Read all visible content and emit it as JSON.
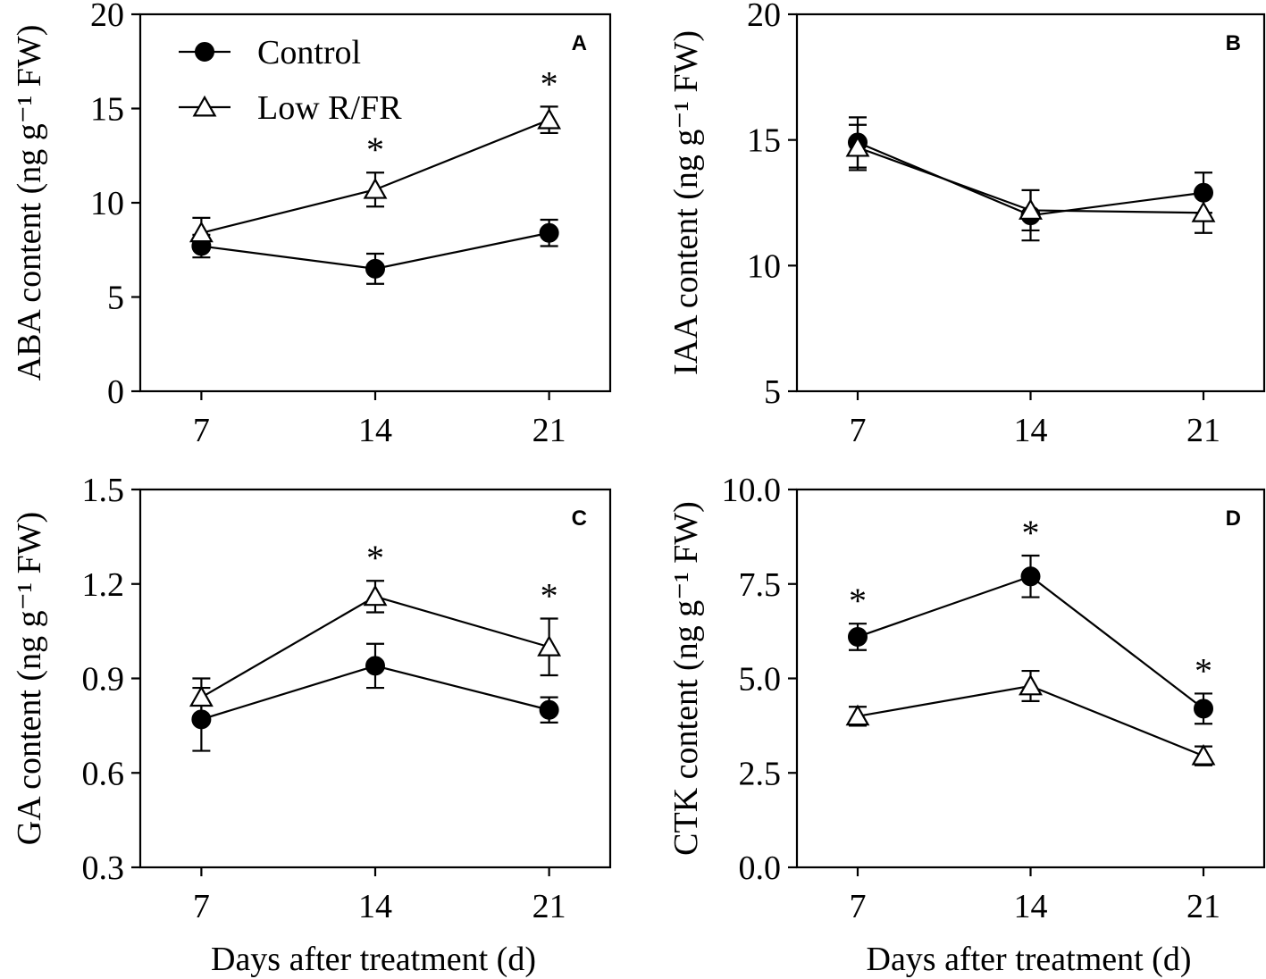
{
  "figure": {
    "legend": [
      {
        "label": "Control",
        "marker": "filled-circle"
      },
      {
        "label": "Low R/FR",
        "marker": "open-triangle"
      }
    ],
    "colors": {
      "line": "#000000",
      "background": "#ffffff"
    }
  },
  "chart_data": [
    {
      "type": "line",
      "panel": "A",
      "xlabel": "",
      "ylabel": "ABA content (ng g⁻¹ FW)",
      "x": [
        7,
        14,
        21
      ],
      "xticks": [
        "7",
        "14",
        "21"
      ],
      "ylim": [
        0,
        20
      ],
      "yticks": [
        "0",
        "5",
        "10",
        "15",
        "20"
      ],
      "series": [
        {
          "name": "Control",
          "values": [
            7.7,
            6.5,
            8.4
          ],
          "errors": [
            0.6,
            0.8,
            0.7
          ]
        },
        {
          "name": "Low R/FR",
          "values": [
            8.4,
            10.7,
            14.4
          ],
          "errors": [
            0.8,
            0.9,
            0.7
          ]
        }
      ],
      "significance": [
        {
          "x": 14,
          "label": "*"
        },
        {
          "x": 21,
          "label": "*"
        }
      ]
    },
    {
      "type": "line",
      "panel": "B",
      "xlabel": "",
      "ylabel": "IAA content (ng g⁻¹ FW)",
      "x": [
        7,
        14,
        21
      ],
      "xticks": [
        "7",
        "14",
        "21"
      ],
      "ylim": [
        5,
        20
      ],
      "yticks": [
        "5",
        "10",
        "15",
        "20"
      ],
      "series": [
        {
          "name": "Control",
          "values": [
            14.9,
            12.0,
            12.9
          ],
          "errors": [
            1.0,
            1.0,
            0.8
          ]
        },
        {
          "name": "Low R/FR",
          "values": [
            14.7,
            12.2,
            12.1
          ],
          "errors": [
            0.9,
            0.8,
            0.8
          ]
        }
      ],
      "significance": []
    },
    {
      "type": "line",
      "panel": "C",
      "xlabel": "Days after treatment (d)",
      "ylabel": "GA content (ng g⁻¹ FW)",
      "x": [
        7,
        14,
        21
      ],
      "xticks": [
        "7",
        "14",
        "21"
      ],
      "ylim": [
        0.3,
        1.5
      ],
      "yticks": [
        "0.3",
        "0.6",
        "0.9",
        "1.2",
        "1.5"
      ],
      "series": [
        {
          "name": "Control",
          "values": [
            0.77,
            0.94,
            0.8
          ],
          "errors": [
            0.1,
            0.07,
            0.04
          ]
        },
        {
          "name": "Low R/FR",
          "values": [
            0.84,
            1.16,
            1.0
          ],
          "errors": [
            0.06,
            0.05,
            0.09
          ]
        }
      ],
      "significance": [
        {
          "x": 14,
          "label": "*"
        },
        {
          "x": 21,
          "label": "*"
        }
      ]
    },
    {
      "type": "line",
      "panel": "D",
      "xlabel": "Days after treatment (d)",
      "ylabel": "CTK content (ng g⁻¹ FW)",
      "x": [
        7,
        14,
        21
      ],
      "xticks": [
        "7",
        "14",
        "21"
      ],
      "ylim": [
        0,
        10
      ],
      "yticks": [
        "0.0",
        "2.5",
        "5.0",
        "7.5",
        "10.0"
      ],
      "series": [
        {
          "name": "Control",
          "values": [
            6.1,
            7.7,
            4.2
          ],
          "errors": [
            0.35,
            0.55,
            0.4
          ]
        },
        {
          "name": "Low R/FR",
          "values": [
            4.0,
            4.8,
            2.95
          ],
          "errors": [
            0.25,
            0.4,
            0.25
          ]
        }
      ],
      "significance": [
        {
          "x": 7,
          "label": "*"
        },
        {
          "x": 14,
          "label": "*"
        },
        {
          "x": 21,
          "label": "*"
        }
      ]
    }
  ]
}
